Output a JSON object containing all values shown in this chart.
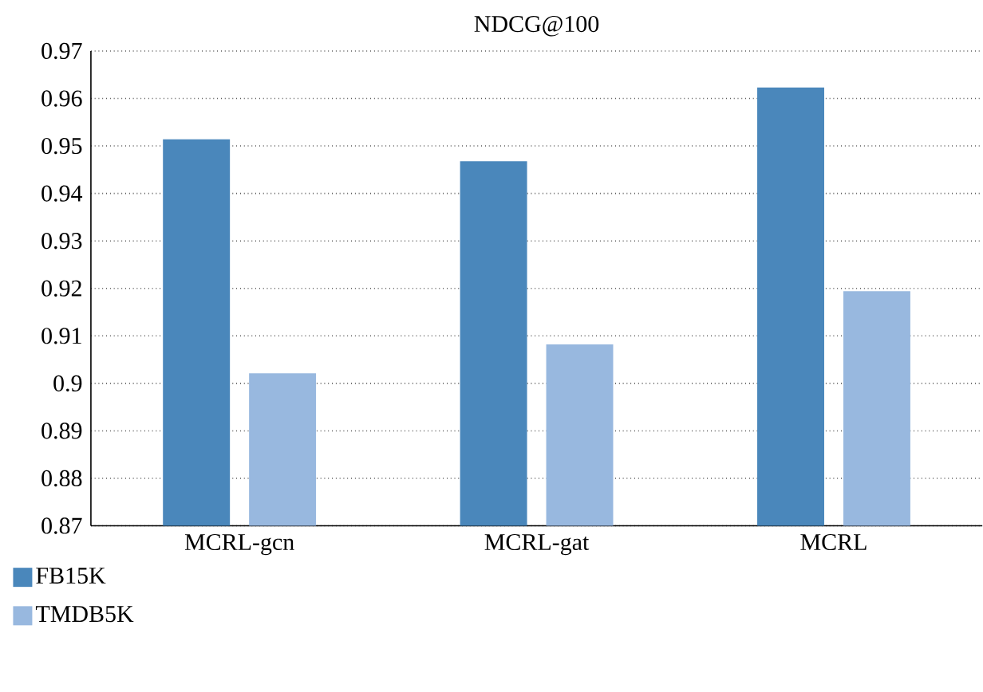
{
  "chart_data": {
    "type": "bar",
    "title": "NDCG@100",
    "categories": [
      "MCRL-gcn",
      "MCRL-gat",
      "MCRL"
    ],
    "series": [
      {
        "name": "FB15K",
        "color": "#4a87bb",
        "values": [
          0.9514,
          0.9468,
          0.9623
        ]
      },
      {
        "name": "TMDB5K",
        "color": "#98b8df",
        "values": [
          0.9021,
          0.9082,
          0.9194
        ]
      }
    ],
    "ylim": [
      0.87,
      0.97
    ],
    "yticks": [
      0.87,
      0.88,
      0.89,
      0.9,
      0.91,
      0.92,
      0.93,
      0.94,
      0.95,
      0.96,
      0.97
    ],
    "grid": "y",
    "legend": "bottom left"
  }
}
